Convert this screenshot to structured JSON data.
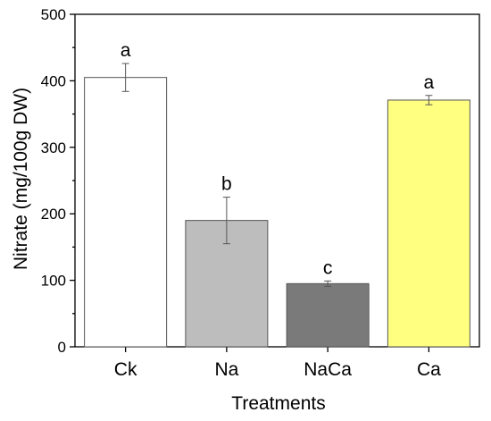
{
  "chart_data": {
    "type": "bar",
    "title": "",
    "xlabel": "Treatments",
    "ylabel": "Nitrate (mg/100g DW)",
    "ylim": [
      0,
      500
    ],
    "yticks": [
      0,
      100,
      200,
      300,
      400,
      500
    ],
    "categories": [
      "Ck",
      "Na",
      "NaCa",
      "Ca"
    ],
    "values": [
      405,
      190,
      95,
      371
    ],
    "errors": [
      21,
      35,
      4,
      7
    ],
    "significance": [
      "a",
      "b",
      "c",
      "a"
    ],
    "colors": [
      "#ffffff",
      "#bdbdbd",
      "#7a7a7a",
      "#ffff80"
    ],
    "grid": false
  }
}
